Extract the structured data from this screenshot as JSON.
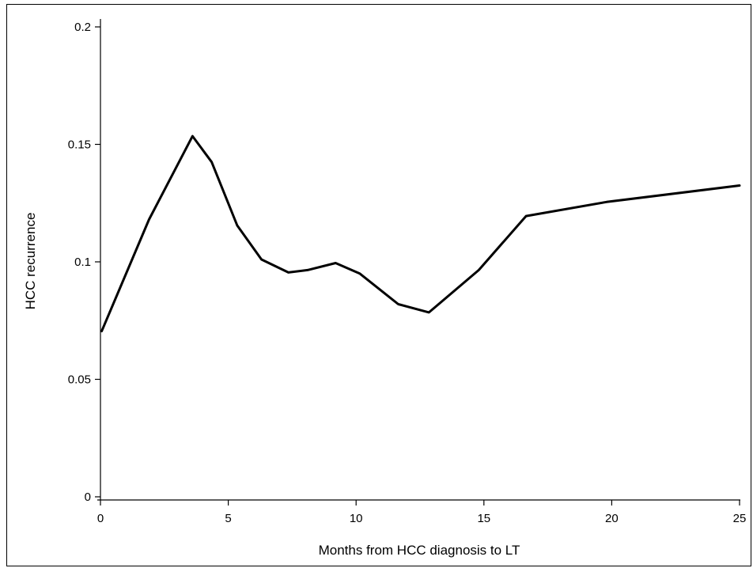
{
  "chart_data": {
    "type": "line",
    "title": "",
    "xlabel": "Months from HCC diagnosis to LT",
    "ylabel": "HCC recurrence",
    "xlim": [
      0,
      25
    ],
    "ylim": [
      0,
      0.2
    ],
    "xticks": [
      0,
      5,
      10,
      15,
      20,
      25
    ],
    "xtick_labels": [
      "0",
      "5",
      "10",
      "15",
      "20",
      "25"
    ],
    "yticks": [
      0,
      0.05,
      0.1,
      0.15,
      0.2
    ],
    "ytick_labels": [
      "0",
      "0.05",
      "0.1",
      "0.15",
      "0.2"
    ],
    "grid": false,
    "legend": false,
    "series": [
      {
        "color": "#000000",
        "x": [
          0.05,
          1.9,
          3.6,
          4.35,
          5.35,
          6.3,
          7.35,
          8.1,
          9.2,
          10.15,
          11.65,
          12.85,
          14.8,
          16.65,
          19.8,
          25
        ],
        "y": [
          0.0705,
          0.118,
          0.1535,
          0.1425,
          0.1155,
          0.101,
          0.0955,
          0.0965,
          0.0995,
          0.095,
          0.082,
          0.0785,
          0.0965,
          0.1195,
          0.1255,
          0.1325
        ]
      }
    ]
  }
}
